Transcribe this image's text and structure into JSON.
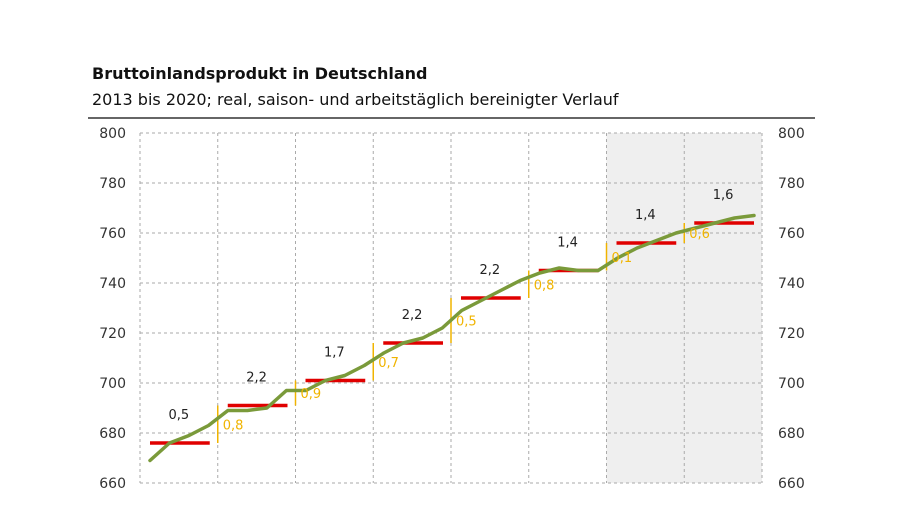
{
  "header": {
    "title": "Bruttoinlandsprodukt in Deutschland",
    "subtitle": "2013 bis 2020; real, saison- und arbeitstäglich bereinigter Verlauf"
  },
  "colors": {
    "quarterly_line": "#7a9a3a",
    "annual_average": "#e00000",
    "carryover": "#f0b400",
    "forecast_shading": "#efefef"
  },
  "chart_data": {
    "type": "line",
    "title": "Bruttoinlandsprodukt in Deutschland",
    "subtitle": "2013 bis 2020; real, saison- und arbeitstäglich bereinigter Verlauf",
    "xlabel": "",
    "ylabel": "",
    "ylim": [
      660,
      800
    ],
    "y_ticks": [
      660,
      680,
      700,
      720,
      740,
      760,
      780,
      800
    ],
    "grid": true,
    "shaded_forecast_from_period": 6,
    "series": [
      {
        "kind": "quarterly",
        "values": [
          669,
          676,
          679,
          683,
          689,
          689,
          690,
          697,
          697,
          701,
          703,
          707,
          712,
          716,
          718,
          722,
          729,
          733,
          737,
          741,
          744,
          746,
          745,
          745,
          750,
          754,
          757,
          760,
          762,
          764,
          766,
          767
        ]
      },
      {
        "kind": "annual_average",
        "values": [
          676,
          691,
          701,
          716,
          734,
          745,
          756,
          764
        ]
      }
    ],
    "growth_labels": [
      "0,5",
      "2,2",
      "1,7",
      "2,2",
      "2,2",
      "1,4",
      "1,4",
      "1,6"
    ],
    "carryover_labels": [
      "0,8",
      "0,9",
      "0,7",
      "0,5",
      "0,8",
      "0,1",
      "0,6"
    ]
  }
}
